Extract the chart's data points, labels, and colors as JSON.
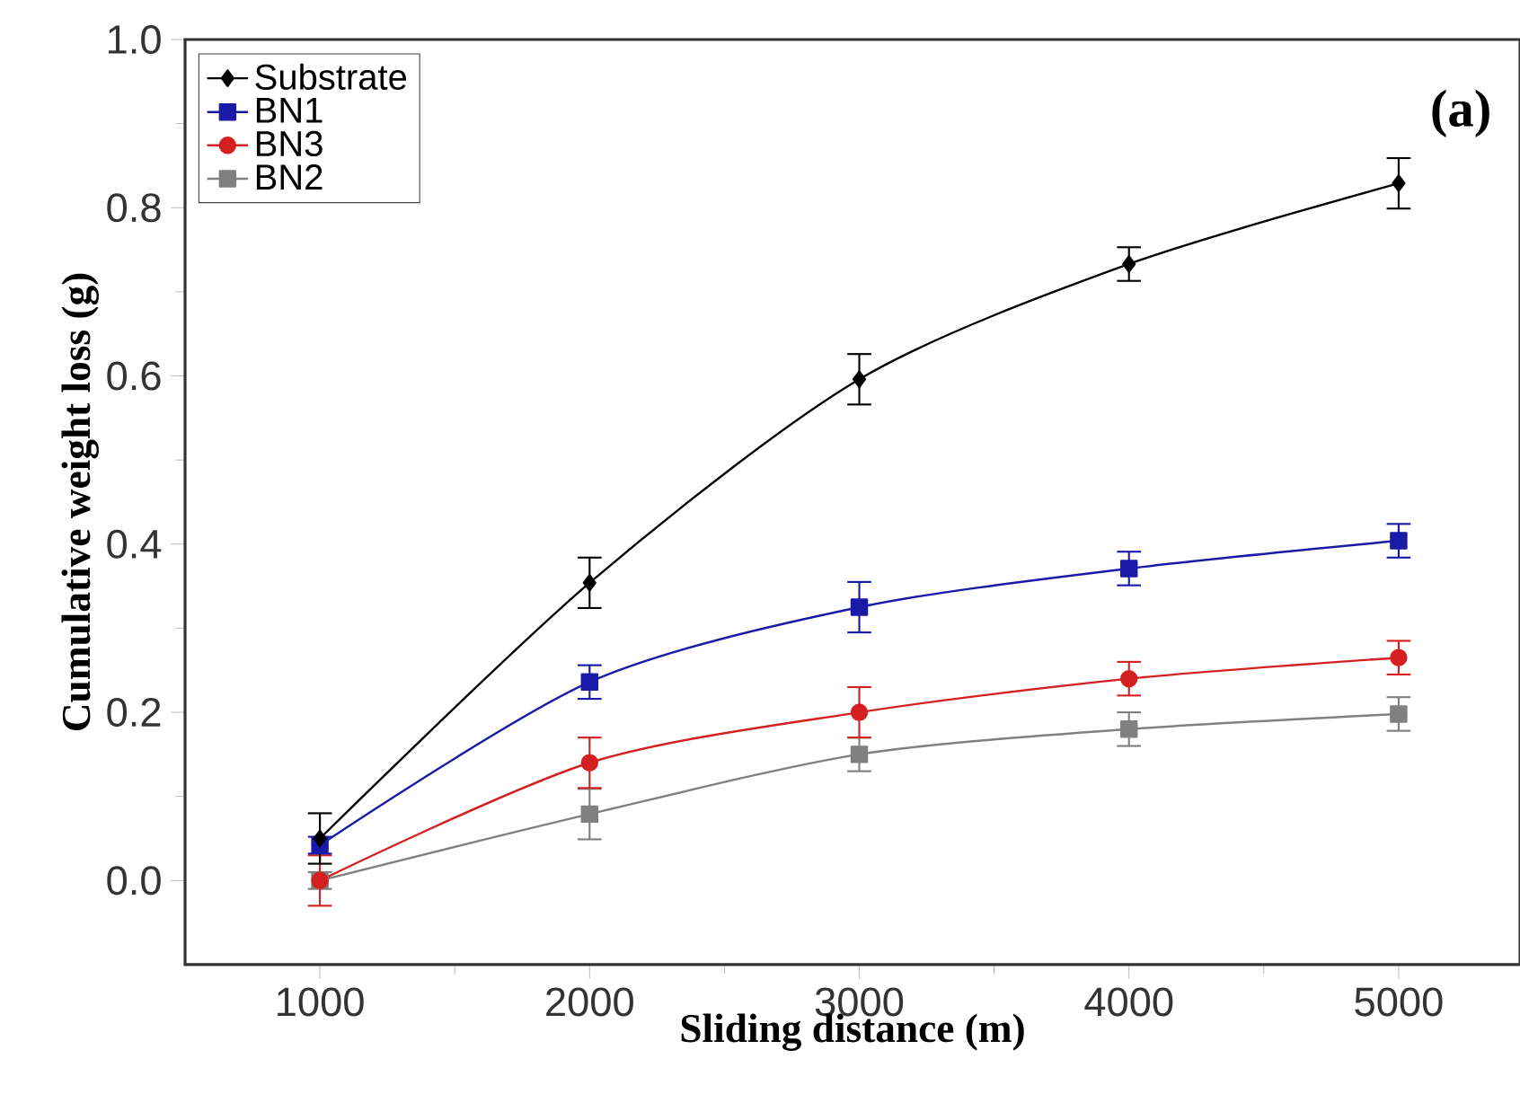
{
  "chart_data": {
    "type": "line",
    "xlabel": "Sliding distance (m)",
    "ylabel": "Cumulative weight loss (g)",
    "x": [
      1000,
      2000,
      3000,
      4000,
      5000
    ],
    "series": [
      {
        "name": "Substrate",
        "color": "#000000",
        "marker": "diamond",
        "values": [
          0.05,
          0.354,
          0.596,
          0.733,
          0.829
        ],
        "errors": [
          0.03,
          0.03,
          0.03,
          0.02,
          0.03
        ]
      },
      {
        "name": "BN1",
        "color": "#1a1aa8",
        "marker": "square",
        "values": [
          0.042,
          0.236,
          0.325,
          0.371,
          0.404
        ],
        "errors": [
          0.01,
          0.02,
          0.03,
          0.02,
          0.02
        ]
      },
      {
        "name": "BN3",
        "color": "#d42020",
        "marker": "circle",
        "values": [
          0.0,
          0.14,
          0.2,
          0.24,
          0.265
        ],
        "errors": [
          0.03,
          0.03,
          0.03,
          0.02,
          0.02
        ]
      },
      {
        "name": "BN2",
        "color": "#808080",
        "marker": "square",
        "values": [
          0.0,
          0.079,
          0.15,
          0.18,
          0.198
        ],
        "errors": [
          0.01,
          0.03,
          0.02,
          0.02,
          0.02
        ]
      }
    ],
    "xlim": [
      500,
      5450
    ],
    "ylim": [
      -0.1,
      1.0
    ],
    "xticks": [
      1000,
      2000,
      3000,
      4000,
      5000
    ],
    "yticks": [
      {
        "value": 0,
        "label": "0.0"
      },
      {
        "value": 0.2,
        "label": "0.2"
      },
      {
        "value": 0.4,
        "label": "0.4"
      },
      {
        "value": 0.6,
        "label": "0.6"
      },
      {
        "value": 0.8,
        "label": "0.8"
      },
      {
        "value": 1.0,
        "label": "1.0"
      }
    ],
    "annotations": [
      "(a)"
    ],
    "legend": "top left",
    "grid": false,
    "line_style": "solid"
  }
}
